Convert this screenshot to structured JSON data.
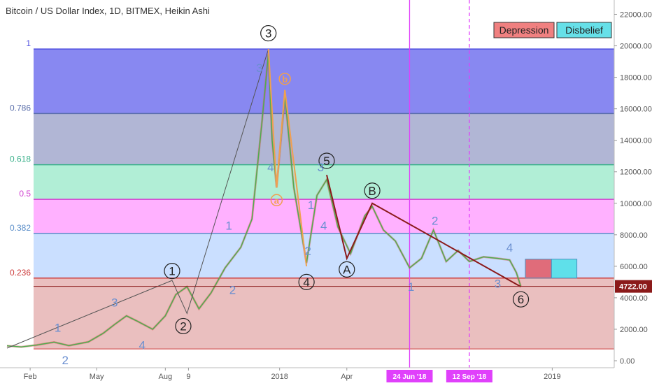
{
  "header": {
    "title": "Bitcoin / US Dollar Index, 1D, BITMEX, Heikin Ashi"
  },
  "legend": [
    {
      "label": "Depression",
      "color": "#f08080"
    },
    {
      "label": "Disbelief",
      "color": "#66e0e8"
    }
  ],
  "chart_data": {
    "type": "line",
    "y_axis": {
      "ylim": [
        0,
        23000
      ],
      "ticks": [
        {
          "value": 0,
          "label": "0.00"
        },
        {
          "value": 2000,
          "label": "2000.00"
        },
        {
          "value": 4000,
          "label": "4000.00"
        },
        {
          "value": 6000,
          "label": "6000.00"
        },
        {
          "value": 8000,
          "label": "8000.00"
        },
        {
          "value": 10000,
          "label": "10000.00"
        },
        {
          "value": 12000,
          "label": "12000.00"
        },
        {
          "value": 14000,
          "label": "14000.00"
        },
        {
          "value": 16000,
          "label": "16000.00"
        },
        {
          "value": 18000,
          "label": "18000.00"
        },
        {
          "value": 20000,
          "label": "20000.00"
        },
        {
          "value": 22000,
          "label": "22000.00"
        }
      ]
    },
    "x_axis": {
      "xlim": [
        "2017-01-01",
        "2019-03-25"
      ],
      "ticks": [
        {
          "date": "2017-02-01",
          "label": "Feb"
        },
        {
          "date": "2017-05-01",
          "label": "May"
        },
        {
          "date": "2017-08-01",
          "label": "Aug"
        },
        {
          "date": "2017-09-01",
          "label": "9"
        },
        {
          "date": "2018-01-01",
          "label": "2018"
        },
        {
          "date": "2018-04-01",
          "label": "Apr"
        },
        {
          "date": "2019-01-01",
          "label": "2019"
        }
      ],
      "highlights": [
        {
          "date": "2018-06-24",
          "label": "24 Jun '18",
          "color": "#e040fb",
          "style": "solid"
        },
        {
          "date": "2018-09-12",
          "label": "12 Sep '18",
          "color": "#e040fb",
          "style": "dashed"
        }
      ]
    },
    "fib_levels": [
      {
        "ratio": "1",
        "price": 19800,
        "band_color": "#7b7bf0",
        "label_color": "#5050e0"
      },
      {
        "ratio": "0.786",
        "price": 15700,
        "band_color": "#a8aed0",
        "label_color": "#5a6eaa"
      },
      {
        "ratio": "0.618",
        "price": 12450,
        "band_color": "#a8ecd2",
        "label_color": "#3ab08a"
      },
      {
        "ratio": "0.5",
        "price": 10250,
        "band_color": "#ffa8ff",
        "label_color": "#d040d0"
      },
      {
        "ratio": "0.382",
        "price": 8080,
        "band_color": "#c4dbff",
        "label_color": "#5b8ec9"
      },
      {
        "ratio": "0.236",
        "price": 5250,
        "band_color": "#e8b8b8",
        "label_color": "#cc3b3b"
      }
    ],
    "fib_base": 750,
    "current_price": {
      "value": 4722,
      "label": "4722.00"
    },
    "price_series": {
      "name": "",
      "color": "#4caf50",
      "points": [
        [
          "2017-01-01",
          950
        ],
        [
          "2017-01-20",
          880
        ],
        [
          "2017-02-10",
          1000
        ],
        [
          "2017-03-05",
          1180
        ],
        [
          "2017-03-25",
          960
        ],
        [
          "2017-04-20",
          1200
        ],
        [
          "2017-05-10",
          1750
        ],
        [
          "2017-05-25",
          2300
        ],
        [
          "2017-06-10",
          2850
        ],
        [
          "2017-06-25",
          2500
        ],
        [
          "2017-07-15",
          2000
        ],
        [
          "2017-08-01",
          2850
        ],
        [
          "2017-08-15",
          4200
        ],
        [
          "2017-08-30",
          4700
        ],
        [
          "2017-09-15",
          3300
        ],
        [
          "2017-10-01",
          4300
        ],
        [
          "2017-10-20",
          5900
        ],
        [
          "2017-11-10",
          7200
        ],
        [
          "2017-11-25",
          9000
        ],
        [
          "2017-12-08",
          15000
        ],
        [
          "2017-12-17",
          19500
        ],
        [
          "2017-12-22",
          14000
        ],
        [
          "2017-12-28",
          11000
        ],
        [
          "2018-01-08",
          16800
        ],
        [
          "2018-01-20",
          11000
        ],
        [
          "2018-02-06",
          6200
        ],
        [
          "2018-02-20",
          10500
        ],
        [
          "2018-03-05",
          11500
        ],
        [
          "2018-03-20",
          8500
        ],
        [
          "2018-04-06",
          6800
        ],
        [
          "2018-04-25",
          9200
        ],
        [
          "2018-05-05",
          9800
        ],
        [
          "2018-05-20",
          8300
        ],
        [
          "2018-06-05",
          7600
        ],
        [
          "2018-06-24",
          5900
        ],
        [
          "2018-07-10",
          6500
        ],
        [
          "2018-07-26",
          8300
        ],
        [
          "2018-08-12",
          6300
        ],
        [
          "2018-08-28",
          7000
        ],
        [
          "2018-09-12",
          6300
        ],
        [
          "2018-10-01",
          6600
        ],
        [
          "2018-10-20",
          6500
        ],
        [
          "2018-11-05",
          6400
        ],
        [
          "2018-11-14",
          5600
        ],
        [
          "2018-11-20",
          4722
        ]
      ]
    },
    "wave_lines": [
      {
        "color": "#555555",
        "width": 1,
        "points": [
          [
            "2017-01-01",
            800
          ],
          [
            "2017-08-10",
            5100
          ]
        ]
      },
      {
        "color": "#555555",
        "width": 1,
        "points": [
          [
            "2017-08-10",
            5100
          ],
          [
            "2017-08-30",
            3000
          ],
          [
            "2017-12-17",
            19800
          ]
        ]
      },
      {
        "color": "#8b1a1a",
        "width": 2,
        "points": [
          [
            "2018-03-05",
            11800
          ],
          [
            "2018-04-01",
            6500
          ],
          [
            "2018-05-05",
            10000
          ],
          [
            "2018-11-20",
            4700
          ]
        ]
      },
      {
        "color": "#f0a050",
        "width": 2,
        "points": [
          [
            "2017-12-17",
            19800
          ],
          [
            "2017-12-28",
            11000
          ],
          [
            "2018-01-08",
            17200
          ],
          [
            "2018-02-06",
            6000
          ]
        ]
      }
    ],
    "circle_labels": [
      {
        "text": "1",
        "date": "2017-08-10",
        "price": 5700
      },
      {
        "text": "2",
        "date": "2017-08-25",
        "price": 2200
      },
      {
        "text": "3",
        "date": "2017-12-17",
        "price": 20800
      },
      {
        "text": "4",
        "date": "2018-02-06",
        "price": 5000
      },
      {
        "text": "5",
        "date": "2018-03-05",
        "price": 12700
      },
      {
        "text": "A",
        "date": "2018-04-01",
        "price": 5800
      },
      {
        "text": "B",
        "date": "2018-05-05",
        "price": 10800
      },
      {
        "text": "6",
        "date": "2018-11-20",
        "price": 3900
      }
    ],
    "small_circle_labels": [
      {
        "text": "a",
        "date": "2017-12-28",
        "price": 10200,
        "color": "#f0a050"
      },
      {
        "text": "b",
        "date": "2018-01-08",
        "price": 17900,
        "color": "#f0a050"
      }
    ],
    "wave_numbers": [
      {
        "text": "1",
        "date": "2017-03-10",
        "price": 2100,
        "color": "#6a8fd0"
      },
      {
        "text": "2",
        "date": "2017-03-20",
        "price": 50,
        "color": "#6a8fd0"
      },
      {
        "text": "3",
        "date": "2017-05-25",
        "price": 3700,
        "color": "#6a8fd0"
      },
      {
        "text": "4",
        "date": "2017-07-01",
        "price": 1000,
        "color": "#6a8fd0"
      },
      {
        "text": "1",
        "date": "2017-10-25",
        "price": 8600,
        "color": "#6a8fd0"
      },
      {
        "text": "2",
        "date": "2017-10-30",
        "price": 4500,
        "color": "#6a8fd0"
      },
      {
        "text": "3",
        "date": "2017-12-05",
        "price": 18600,
        "color": "#6a8fd0"
      },
      {
        "text": "4",
        "date": "2017-12-20",
        "price": 12300,
        "color": "#6a8fd0"
      },
      {
        "text": "1",
        "date": "2018-02-12",
        "price": 9900,
        "color": "#6a8fd0"
      },
      {
        "text": "2",
        "date": "2018-02-08",
        "price": 7000,
        "color": "#6a8fd0"
      },
      {
        "text": "3",
        "date": "2018-02-25",
        "price": 12300,
        "color": "#6a8fd0"
      },
      {
        "text": "4",
        "date": "2018-03-01",
        "price": 8600,
        "color": "#6a8fd0"
      },
      {
        "text": "1",
        "date": "2018-06-26",
        "price": 4700,
        "color": "#6a8fd0"
      },
      {
        "text": "2",
        "date": "2018-07-28",
        "price": 8900,
        "color": "#6a8fd0"
      },
      {
        "text": "3",
        "date": "2018-10-20",
        "price": 4900,
        "color": "#6a8fd0"
      },
      {
        "text": "4",
        "date": "2018-11-05",
        "price": 7200,
        "color": "#6a8fd0"
      }
    ],
    "zone_boxes": [
      {
        "label": "Depression",
        "from": "2018-11-26",
        "to": "2018-12-31",
        "bottom": 5250,
        "top": 6450,
        "color": "#e06c7a"
      },
      {
        "label": "Disbelief",
        "from": "2018-12-31",
        "to": "2019-02-03",
        "bottom": 5250,
        "top": 6450,
        "color": "#5fe0ea"
      }
    ]
  }
}
